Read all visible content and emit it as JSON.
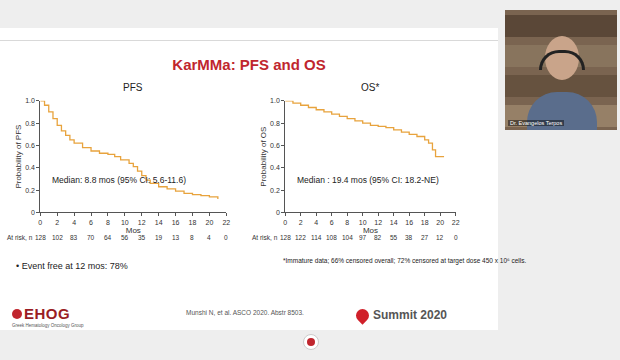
{
  "chart_data": [
    {
      "type": "line",
      "title": "PFS",
      "xlabel": "Mos",
      "ylabel": "Probability of PFS",
      "x": [
        0,
        0.5,
        1,
        1.5,
        2,
        2.5,
        3,
        3.5,
        4,
        5,
        6,
        7,
        8,
        8.8,
        9.5,
        10.5,
        11,
        11.5,
        12,
        12.5,
        13,
        14,
        15,
        16,
        17,
        18,
        19,
        20,
        21
      ],
      "values": [
        1.0,
        0.96,
        0.9,
        0.84,
        0.78,
        0.73,
        0.69,
        0.65,
        0.62,
        0.58,
        0.55,
        0.53,
        0.52,
        0.5,
        0.47,
        0.44,
        0.41,
        0.37,
        0.33,
        0.29,
        0.26,
        0.23,
        0.21,
        0.19,
        0.17,
        0.16,
        0.15,
        0.14,
        0.12
      ],
      "color": "#e8a33d",
      "line_style": "step",
      "grid": false,
      "xlim": [
        0,
        22
      ],
      "xticks": [
        0,
        2,
        4,
        6,
        8,
        10,
        12,
        14,
        16,
        18,
        20,
        22
      ],
      "ylim": [
        0,
        1
      ],
      "yticks": [
        0,
        0.2,
        0.4,
        0.6,
        0.8,
        {
          "value": 1,
          "label": "1.0"
        }
      ],
      "annotations": [
        "Median: 8.8 mos (95% CI: 5.6-11.6)"
      ],
      "at_risk": {
        "label": "At risk, n",
        "x": [
          0,
          2,
          4,
          6,
          8,
          10,
          12,
          14,
          16,
          18,
          20,
          22
        ],
        "values": [
          128,
          102,
          83,
          70,
          64,
          56,
          35,
          19,
          13,
          8,
          4,
          0
        ]
      }
    },
    {
      "type": "line",
      "title": "OS*",
      "xlabel": "Mos",
      "ylabel": "Probability of OS",
      "x": [
        0,
        1,
        2,
        3,
        4,
        5,
        6,
        7,
        8,
        9,
        10,
        11,
        12,
        13,
        14,
        15,
        16,
        17,
        18,
        18.5,
        19,
        19.4,
        20,
        20.5
      ],
      "values": [
        1.0,
        0.98,
        0.96,
        0.94,
        0.92,
        0.9,
        0.88,
        0.86,
        0.84,
        0.82,
        0.8,
        0.78,
        0.77,
        0.76,
        0.74,
        0.72,
        0.7,
        0.68,
        0.65,
        0.62,
        0.56,
        0.5,
        0.5,
        0.5
      ],
      "color": "#e8a33d",
      "line_style": "step",
      "grid": false,
      "xlim": [
        0,
        22
      ],
      "xticks": [
        0,
        2,
        4,
        6,
        8,
        10,
        12,
        14,
        16,
        18,
        20,
        22
      ],
      "ylim": [
        0,
        1
      ],
      "yticks": [
        0,
        0.2,
        0.4,
        0.6,
        0.8,
        {
          "value": 1,
          "label": "1.0"
        }
      ],
      "annotations": [
        "Median : 19.4 mos (95% CI: 18.2-NE)"
      ],
      "at_risk": {
        "label": "At risk, n",
        "x": [
          0,
          2,
          4,
          6,
          8,
          10,
          12,
          14,
          16,
          18,
          20,
          22
        ],
        "values": [
          128,
          122,
          114,
          108,
          104,
          97,
          82,
          55,
          38,
          27,
          12,
          0
        ]
      }
    }
  ],
  "slide": {
    "title": "KarMMa: PFS and OS",
    "bullet": "• Event free at 12 mos: 78%",
    "footnote": "*Immature data; 66% censored overall; 72% censored at target dose 450 x 10⁶ cells.",
    "citation": "Munshi N, et al. ASCO 2020. Abstr 8503.",
    "logo_left": "EHOG",
    "logo_left_caption": "Greek Hematology Oncology Group",
    "logo_right": "Summit 2020",
    "speaker": "Dr. Evangelos Terpos"
  }
}
